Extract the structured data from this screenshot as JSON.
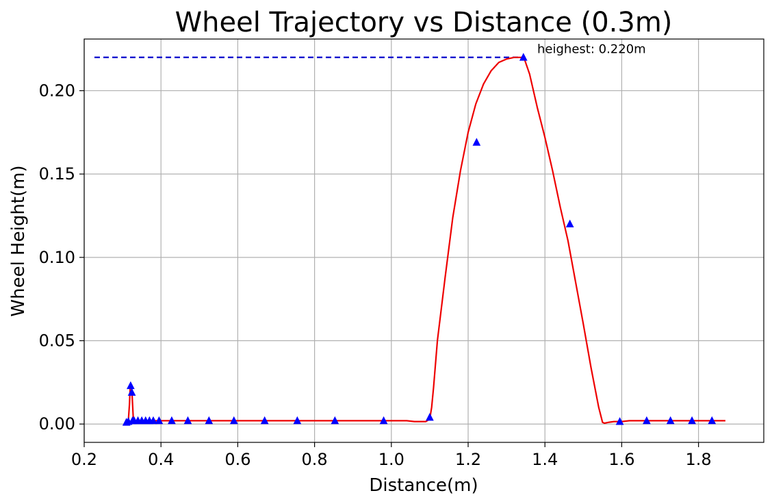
{
  "chart_data": {
    "type": "line",
    "title": "Wheel Trajectory vs Distance (0.3m)",
    "xlabel": "Distance(m)",
    "ylabel": "Wheel Height(m)",
    "xlim": [
      0.2,
      1.97
    ],
    "ylim": [
      -0.011,
      0.231
    ],
    "xticks": [
      "0.2",
      "0.4",
      "0.6",
      "0.8",
      "1.0",
      "1.2",
      "1.4",
      "1.6",
      "1.8"
    ],
    "yticks": [
      "0.00",
      "0.05",
      "0.10",
      "0.15",
      "0.20"
    ],
    "grid": true,
    "colors": {
      "line": "#ee0000",
      "markers": "#0000ff",
      "max_line": "#0000cc"
    },
    "series": [
      {
        "style": "line",
        "color": "#ee0000",
        "x": [
          0.31,
          0.315,
          0.318,
          0.32,
          0.322,
          0.324,
          0.326,
          0.328,
          0.33,
          0.333,
          0.35,
          0.4,
          0.5,
          0.6,
          0.7,
          0.8,
          0.9,
          1.0,
          1.04,
          1.06,
          1.09,
          1.1,
          1.105,
          1.11,
          1.12,
          1.14,
          1.16,
          1.18,
          1.2,
          1.22,
          1.24,
          1.26,
          1.28,
          1.3,
          1.32,
          1.335,
          1.345,
          1.36,
          1.38,
          1.4,
          1.42,
          1.44,
          1.46,
          1.48,
          1.5,
          1.52,
          1.54,
          1.55,
          1.555,
          1.565,
          1.58,
          1.6,
          1.62,
          1.65,
          1.7,
          1.8,
          1.87
        ],
        "y": [
          0.001,
          0.002,
          0.012,
          0.023,
          0.024,
          0.021,
          0.012,
          0.003,
          0.002,
          0.002,
          0.002,
          0.002,
          0.002,
          0.002,
          0.002,
          0.002,
          0.002,
          0.002,
          0.002,
          0.0015,
          0.0015,
          0.003,
          0.01,
          0.022,
          0.05,
          0.088,
          0.124,
          0.152,
          0.175,
          0.192,
          0.204,
          0.212,
          0.217,
          0.219,
          0.22,
          0.22,
          0.22,
          0.21,
          0.19,
          0.172,
          0.152,
          0.13,
          0.11,
          0.085,
          0.06,
          0.034,
          0.01,
          0.001,
          0.0005,
          0.001,
          0.0015,
          0.0015,
          0.002,
          0.002,
          0.002,
          0.002,
          0.002
        ]
      },
      {
        "style": "markers",
        "marker": "triangle",
        "color": "#0000ff",
        "x": [
          0.31,
          0.315,
          0.321,
          0.324,
          0.326,
          0.33,
          0.34,
          0.35,
          0.36,
          0.37,
          0.38,
          0.395,
          0.428,
          0.47,
          0.525,
          0.59,
          0.67,
          0.755,
          0.853,
          0.98,
          1.1,
          1.222,
          1.344,
          1.465,
          1.595,
          1.665,
          1.727,
          1.783,
          1.835
        ],
        "y": [
          0.001,
          0.0015,
          0.023,
          0.019,
          0.002,
          0.002,
          0.002,
          0.002,
          0.002,
          0.002,
          0.002,
          0.002,
          0.002,
          0.002,
          0.002,
          0.002,
          0.002,
          0.002,
          0.002,
          0.002,
          0.004,
          0.169,
          0.22,
          0.12,
          0.0015,
          0.002,
          0.002,
          0.002,
          0.002
        ]
      }
    ],
    "max_point": {
      "x": 1.344,
      "y": 0.22
    },
    "annotations": [
      {
        "text": "heighest: 0.220m",
        "x": 1.38,
        "y": 0.2225
      }
    ]
  }
}
